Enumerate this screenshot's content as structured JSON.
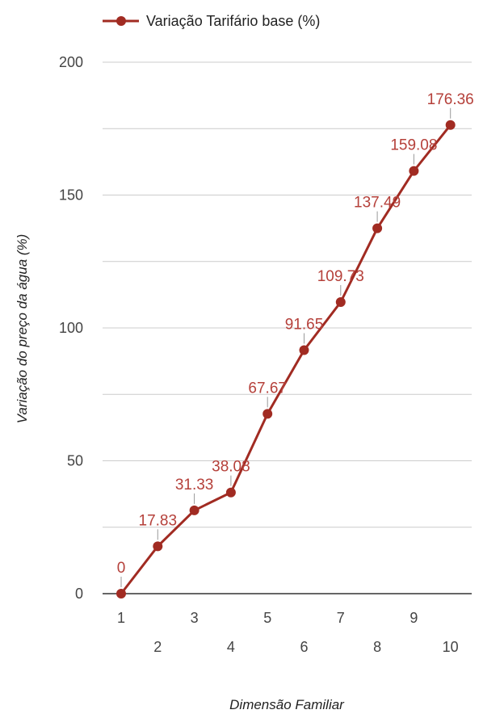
{
  "chart_data": {
    "type": "line",
    "categories": [
      "1",
      "2",
      "3",
      "4",
      "5",
      "6",
      "7",
      "8",
      "9",
      "10"
    ],
    "series": [
      {
        "name": "Variação Tarifário base (%)",
        "values": [
          0,
          17.83,
          31.33,
          38.08,
          67.67,
          91.65,
          109.73,
          137.49,
          159.08,
          176.36
        ],
        "labels": [
          "0",
          "17.83",
          "31.33",
          "38.08",
          "67.67",
          "91.65",
          "109.73",
          "137.49",
          "159.08",
          "176.36"
        ],
        "color": "#a12b22"
      }
    ],
    "xlabel": "Dimensão Familiar",
    "ylabel": "Variação do preço da água (%)",
    "ylim": [
      0,
      200
    ],
    "yticks": [
      "0",
      "50",
      "100",
      "150",
      "200"
    ],
    "grid": true,
    "legend_position": "top"
  }
}
